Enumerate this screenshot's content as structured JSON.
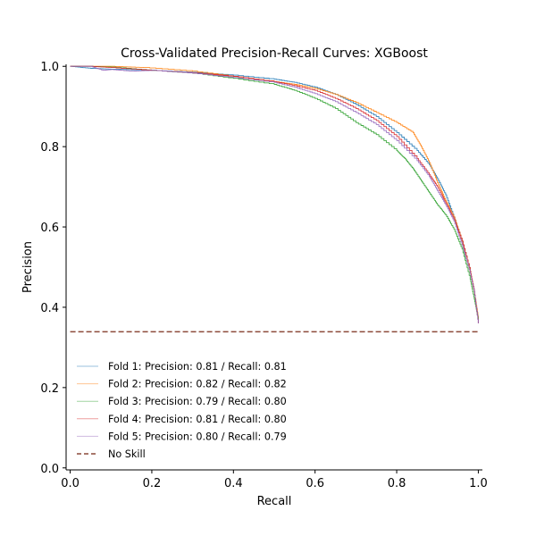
{
  "chart_data": {
    "type": "line",
    "title": "Cross-Validated Precision-Recall Curves: XGBoost",
    "xlabel": "Recall",
    "ylabel": "Precision",
    "xlim": [
      -0.01,
      1.01
    ],
    "ylim": [
      -0.005,
      1.005
    ],
    "xticks": [
      "0.0",
      "0.2",
      "0.4",
      "0.6",
      "0.8",
      "1.0"
    ],
    "yticks": [
      "0.0",
      "0.2",
      "0.4",
      "0.6",
      "0.8",
      "1.0"
    ],
    "grid": false,
    "legend_position": "lower-left",
    "series": [
      {
        "name": "Fold 1: Precision: 0.81 / Recall: 0.81",
        "color": "#1f77b4",
        "x": [
          0.0,
          0.05,
          0.1,
          0.2,
          0.3,
          0.4,
          0.5,
          0.55,
          0.6,
          0.65,
          0.7,
          0.75,
          0.8,
          0.85,
          0.88,
          0.9,
          0.92,
          0.94,
          0.96,
          0.98,
          0.99,
          1.0
        ],
        "y": [
          1.0,
          0.995,
          0.993,
          0.99,
          0.985,
          0.978,
          0.968,
          0.96,
          0.948,
          0.93,
          0.905,
          0.875,
          0.835,
          0.79,
          0.755,
          0.72,
          0.68,
          0.625,
          0.565,
          0.49,
          0.44,
          0.36
        ]
      },
      {
        "name": "Fold 2: Precision: 0.82 / Recall: 0.82",
        "color": "#ff7f0e",
        "x": [
          0.0,
          0.05,
          0.1,
          0.18,
          0.3,
          0.4,
          0.5,
          0.55,
          0.6,
          0.65,
          0.7,
          0.75,
          0.8,
          0.84,
          0.86,
          0.88,
          0.9,
          0.92,
          0.94,
          0.96,
          0.98,
          0.99,
          1.0
        ],
        "y": [
          1.0,
          1.0,
          1.0,
          0.997,
          0.988,
          0.975,
          0.962,
          0.955,
          0.945,
          0.93,
          0.91,
          0.885,
          0.86,
          0.835,
          0.8,
          0.76,
          0.71,
          0.665,
          0.625,
          0.565,
          0.49,
          0.44,
          0.37
        ]
      },
      {
        "name": "Fold 3: Precision: 0.79 / Recall: 0.80",
        "color": "#2ca02c",
        "x": [
          0.0,
          0.05,
          0.1,
          0.2,
          0.3,
          0.4,
          0.5,
          0.55,
          0.6,
          0.65,
          0.7,
          0.75,
          0.8,
          0.82,
          0.84,
          0.86,
          0.88,
          0.9,
          0.92,
          0.94,
          0.96,
          0.98,
          0.99,
          1.0
        ],
        "y": [
          1.0,
          1.0,
          0.998,
          0.99,
          0.983,
          0.97,
          0.955,
          0.94,
          0.92,
          0.895,
          0.86,
          0.83,
          0.79,
          0.77,
          0.745,
          0.715,
          0.685,
          0.655,
          0.63,
          0.595,
          0.545,
          0.47,
          0.42,
          0.37
        ]
      },
      {
        "name": "Fold 4: Precision: 0.81 / Recall: 0.80",
        "color": "#d62728",
        "x": [
          0.0,
          0.05,
          0.1,
          0.2,
          0.3,
          0.4,
          0.5,
          0.55,
          0.6,
          0.65,
          0.7,
          0.75,
          0.8,
          0.85,
          0.88,
          0.9,
          0.92,
          0.94,
          0.96,
          0.98,
          0.99,
          1.0
        ],
        "y": [
          1.0,
          1.0,
          0.997,
          0.99,
          0.984,
          0.975,
          0.962,
          0.952,
          0.94,
          0.92,
          0.895,
          0.865,
          0.825,
          0.77,
          0.73,
          0.7,
          0.66,
          0.62,
          0.565,
          0.49,
          0.44,
          0.36
        ]
      },
      {
        "name": "Fold 5: Precision: 0.80 / Recall: 0.79",
        "color": "#9467bd",
        "x": [
          0.0,
          0.05,
          0.08,
          0.1,
          0.15,
          0.2,
          0.3,
          0.4,
          0.5,
          0.55,
          0.6,
          0.65,
          0.7,
          0.75,
          0.8,
          0.85,
          0.88,
          0.9,
          0.92,
          0.94,
          0.96,
          0.98,
          0.99,
          1.0
        ],
        "y": [
          1.0,
          1.0,
          0.99,
          0.992,
          0.988,
          0.99,
          0.983,
          0.972,
          0.96,
          0.948,
          0.932,
          0.912,
          0.885,
          0.855,
          0.815,
          0.765,
          0.725,
          0.69,
          0.655,
          0.615,
          0.555,
          0.485,
          0.44,
          0.36
        ]
      }
    ],
    "baseline": {
      "name": "No Skill",
      "color": "#8c4a3a",
      "y": 0.339
    }
  }
}
